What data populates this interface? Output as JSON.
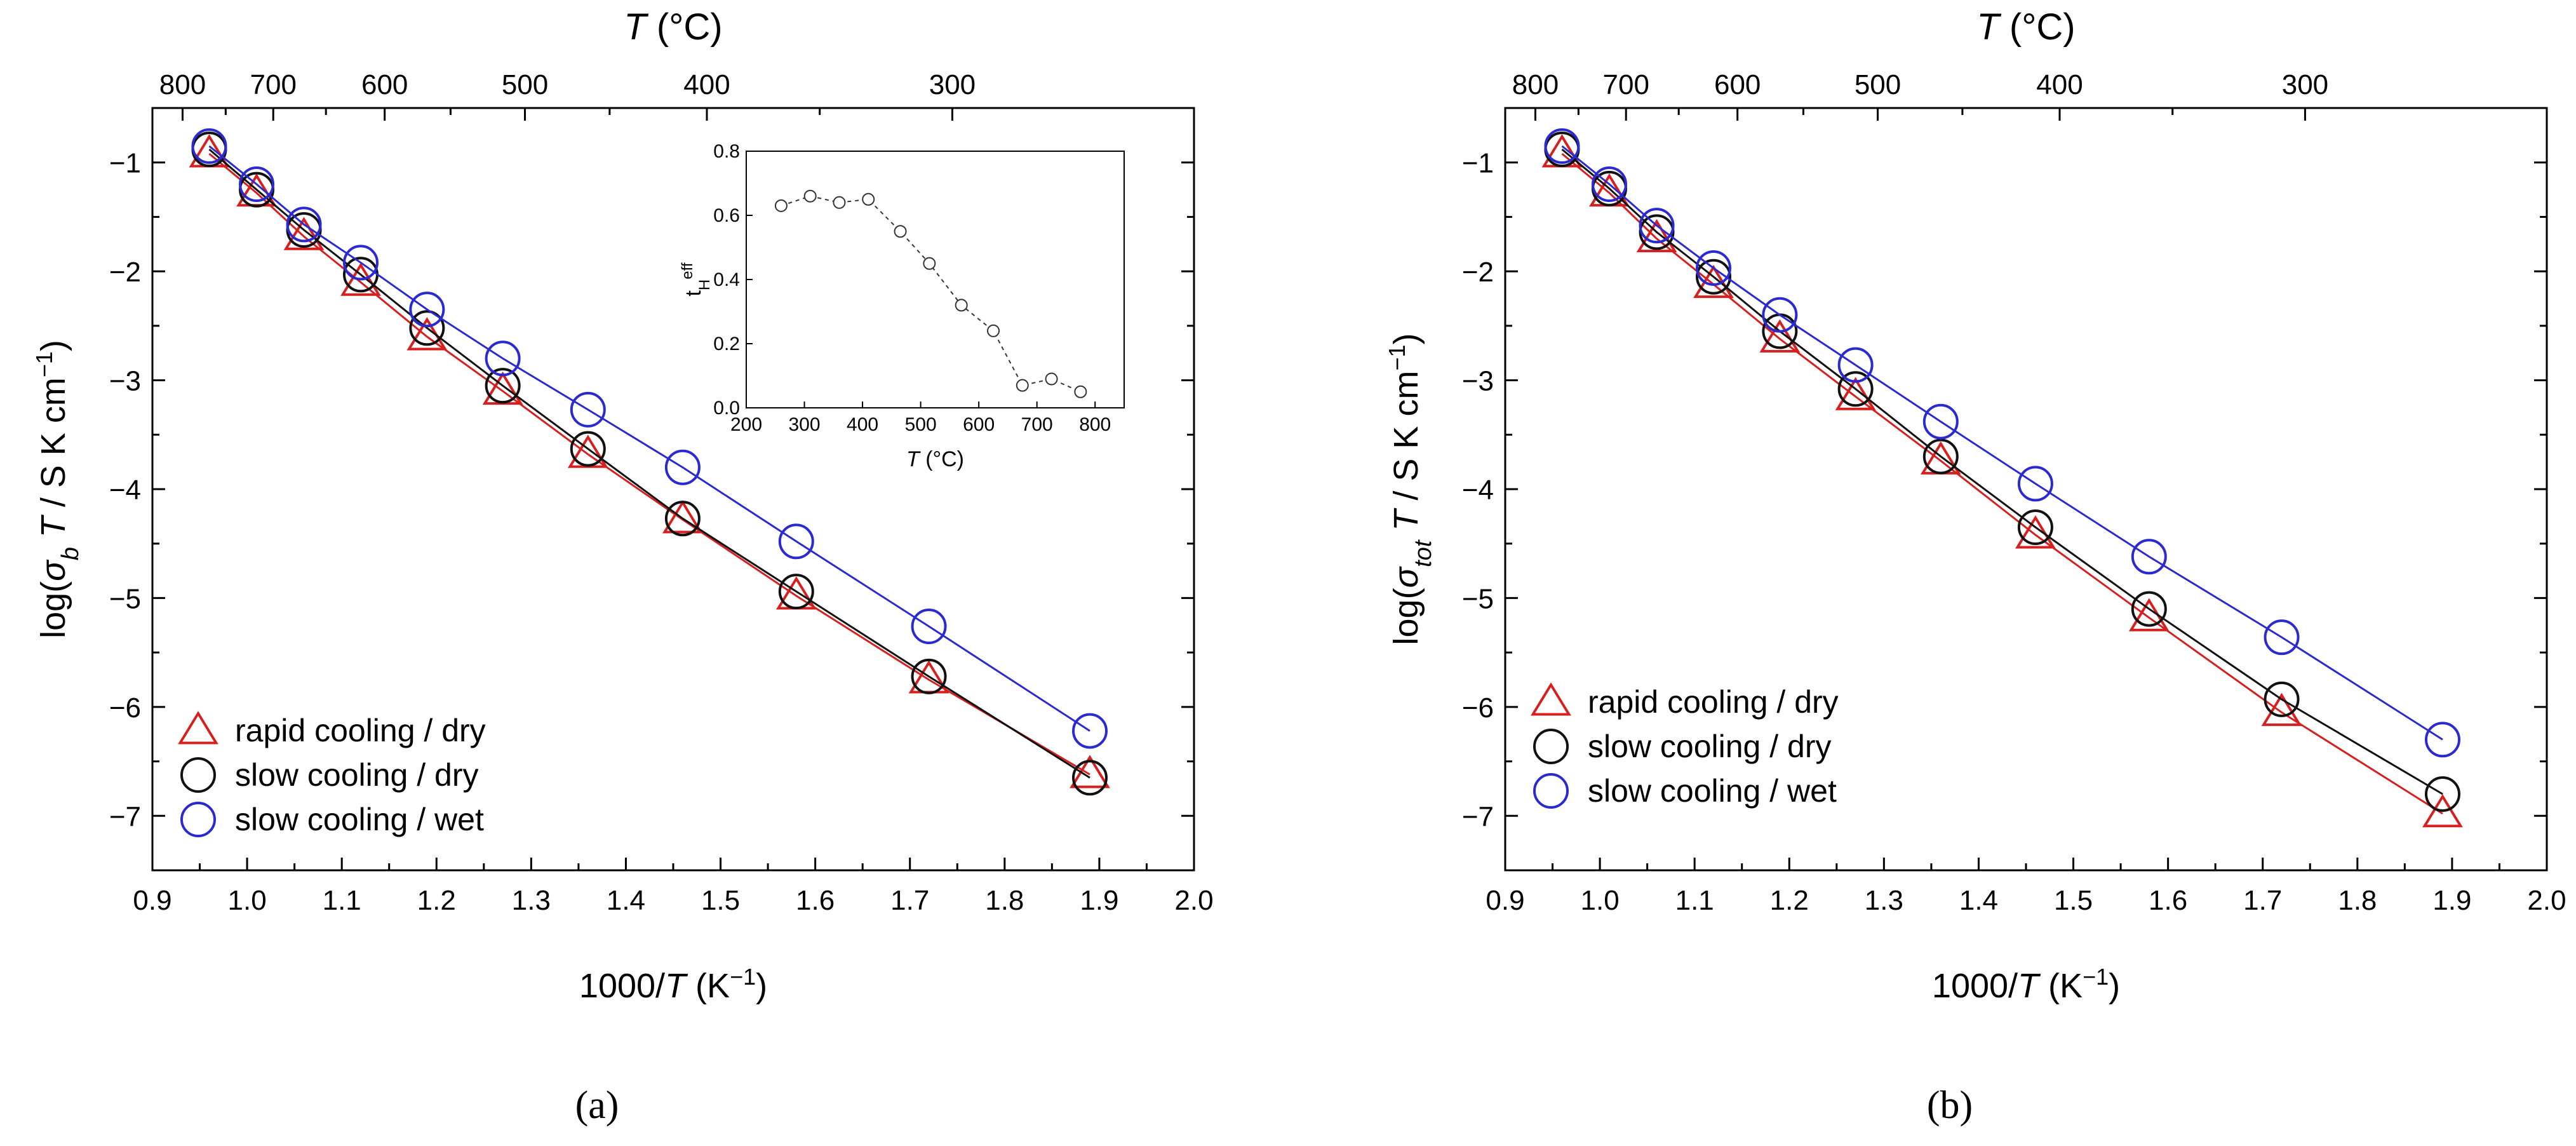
{
  "chart_data": [
    {
      "type": "scatter",
      "panel_label": "(a)",
      "x_axis": {
        "pre": "1000/",
        "var": "T",
        "post": " (K",
        "sup": "−1",
        "close": ")",
        "range": [
          0.9,
          2.0
        ],
        "ticks": [
          0.9,
          1.0,
          1.1,
          1.2,
          1.3,
          1.4,
          1.5,
          1.6,
          1.7,
          1.8,
          1.9,
          2.0
        ],
        "tick_labels": [
          "0.9",
          "1.0",
          "1.1",
          "1.2",
          "1.3",
          "1.4",
          "1.5",
          "1.6",
          "1.7",
          "1.8",
          "1.9",
          "2.0"
        ]
      },
      "y_axis": {
        "pre": "log(",
        "sigma": "σ",
        "sub": "b",
        "var": "T",
        "post": " / S K cm",
        "sup": "−1",
        "close": ")",
        "range": [
          -7.5,
          -0.5
        ],
        "ticks": [
          -7,
          -6,
          -5,
          -4,
          -3,
          -2,
          -1
        ],
        "tick_labels": [
          "−7",
          "−6",
          "−5",
          "−4",
          "−3",
          "−2",
          "−1"
        ]
      },
      "top_axis": {
        "var": "T",
        "unit": " (°C)",
        "ticks": [
          800,
          700,
          600,
          500,
          400,
          300
        ],
        "tick_labels": [
          "800",
          "700",
          "600",
          "500",
          "400",
          "300"
        ]
      },
      "legend": {
        "placement": "bottom-left"
      },
      "series": [
        {
          "name": "rapid cooling / dry",
          "color": "#d62020",
          "marker": "triangle",
          "x": [
            0.96,
            1.01,
            1.06,
            1.12,
            1.19,
            1.27,
            1.36,
            1.46,
            1.58,
            1.72,
            1.89
          ],
          "y": [
            -0.92,
            -1.28,
            -1.68,
            -2.1,
            -2.6,
            -3.1,
            -3.68,
            -4.28,
            -4.98,
            -5.75,
            -6.62
          ]
        },
        {
          "name": "slow cooling / dry",
          "color": "#111111",
          "marker": "circle",
          "x": [
            0.96,
            1.01,
            1.06,
            1.12,
            1.19,
            1.27,
            1.36,
            1.46,
            1.58,
            1.72,
            1.89
          ],
          "y": [
            -0.88,
            -1.25,
            -1.62,
            -2.03,
            -2.52,
            -3.05,
            -3.63,
            -4.27,
            -4.94,
            -5.72,
            -6.65
          ]
        },
        {
          "name": "slow cooling / wet",
          "color": "#2a2ad0",
          "marker": "circle",
          "x": [
            0.96,
            1.01,
            1.06,
            1.12,
            1.19,
            1.27,
            1.36,
            1.46,
            1.58,
            1.72,
            1.89
          ],
          "y": [
            -0.85,
            -1.2,
            -1.57,
            -1.92,
            -2.35,
            -2.8,
            -3.27,
            -3.8,
            -4.48,
            -5.26,
            -6.22
          ]
        }
      ],
      "inset": {
        "type": "scatter",
        "x_axis": {
          "var": "T",
          "unit": " (°C)",
          "range": [
            200,
            850
          ],
          "ticks": [
            200,
            300,
            400,
            500,
            600,
            700,
            800
          ],
          "tick_labels": [
            "200",
            "300",
            "400",
            "500",
            "600",
            "700",
            "800"
          ]
        },
        "y_axis": {
          "base": "t",
          "sub": "H",
          "sup": "eff",
          "range": [
            0.0,
            0.8
          ],
          "ticks": [
            0.0,
            0.2,
            0.4,
            0.6,
            0.8
          ],
          "tick_labels": [
            "0.0",
            "0.2",
            "0.4",
            "0.6",
            "0.8"
          ]
        },
        "series": [
          {
            "x": [
              260,
              310,
              360,
              410,
              465,
              515,
              570,
              625,
              675,
              725,
              775
            ],
            "y": [
              0.63,
              0.66,
              0.64,
              0.65,
              0.55,
              0.45,
              0.32,
              0.24,
              0.07,
              0.09,
              0.05
            ]
          }
        ]
      }
    },
    {
      "type": "scatter",
      "panel_label": "(b)",
      "x_axis": {
        "pre": "1000/",
        "var": "T",
        "post": " (K",
        "sup": "−1",
        "close": ")",
        "range": [
          0.9,
          2.0
        ],
        "ticks": [
          0.9,
          1.0,
          1.1,
          1.2,
          1.3,
          1.4,
          1.5,
          1.6,
          1.7,
          1.8,
          1.9,
          2.0
        ],
        "tick_labels": [
          "0.9",
          "1.0",
          "1.1",
          "1.2",
          "1.3",
          "1.4",
          "1.5",
          "1.6",
          "1.7",
          "1.8",
          "1.9",
          "2.0"
        ]
      },
      "y_axis": {
        "pre": "log(",
        "sigma": "σ",
        "sub": "tot",
        "var": "T",
        "post": " / S K cm",
        "sup": "−1",
        "close": ")",
        "range": [
          -7.5,
          -0.5
        ],
        "ticks": [
          -7,
          -6,
          -5,
          -4,
          -3,
          -2,
          -1
        ],
        "tick_labels": [
          "−7",
          "−6",
          "−5",
          "−4",
          "−3",
          "−2",
          "−1"
        ]
      },
      "top_axis": {
        "var": "T",
        "unit": " (°C)",
        "ticks": [
          800,
          700,
          600,
          500,
          400,
          300
        ],
        "tick_labels": [
          "800",
          "700",
          "600",
          "500",
          "400",
          "300"
        ]
      },
      "legend": {
        "placement": "bottom-left"
      },
      "series": [
        {
          "name": "rapid cooling / dry",
          "color": "#d62020",
          "marker": "triangle",
          "x": [
            0.96,
            1.01,
            1.06,
            1.12,
            1.19,
            1.27,
            1.36,
            1.46,
            1.58,
            1.72,
            1.89
          ],
          "y": [
            -0.92,
            -1.28,
            -1.7,
            -2.12,
            -2.62,
            -3.15,
            -3.74,
            -4.42,
            -5.18,
            -6.05,
            -6.98
          ]
        },
        {
          "name": "slow cooling / dry",
          "color": "#111111",
          "marker": "circle",
          "x": [
            0.96,
            1.01,
            1.06,
            1.12,
            1.19,
            1.27,
            1.36,
            1.46,
            1.58,
            1.72,
            1.89
          ],
          "y": [
            -0.88,
            -1.24,
            -1.64,
            -2.05,
            -2.55,
            -3.08,
            -3.7,
            -4.35,
            -5.1,
            -5.93,
            -6.8
          ]
        },
        {
          "name": "slow cooling / wet",
          "color": "#2a2ad0",
          "marker": "circle",
          "x": [
            0.96,
            1.01,
            1.06,
            1.12,
            1.19,
            1.27,
            1.36,
            1.46,
            1.58,
            1.72,
            1.89
          ],
          "y": [
            -0.85,
            -1.2,
            -1.58,
            -1.97,
            -2.4,
            -2.86,
            -3.38,
            -3.95,
            -4.62,
            -5.36,
            -6.3
          ]
        }
      ]
    }
  ]
}
